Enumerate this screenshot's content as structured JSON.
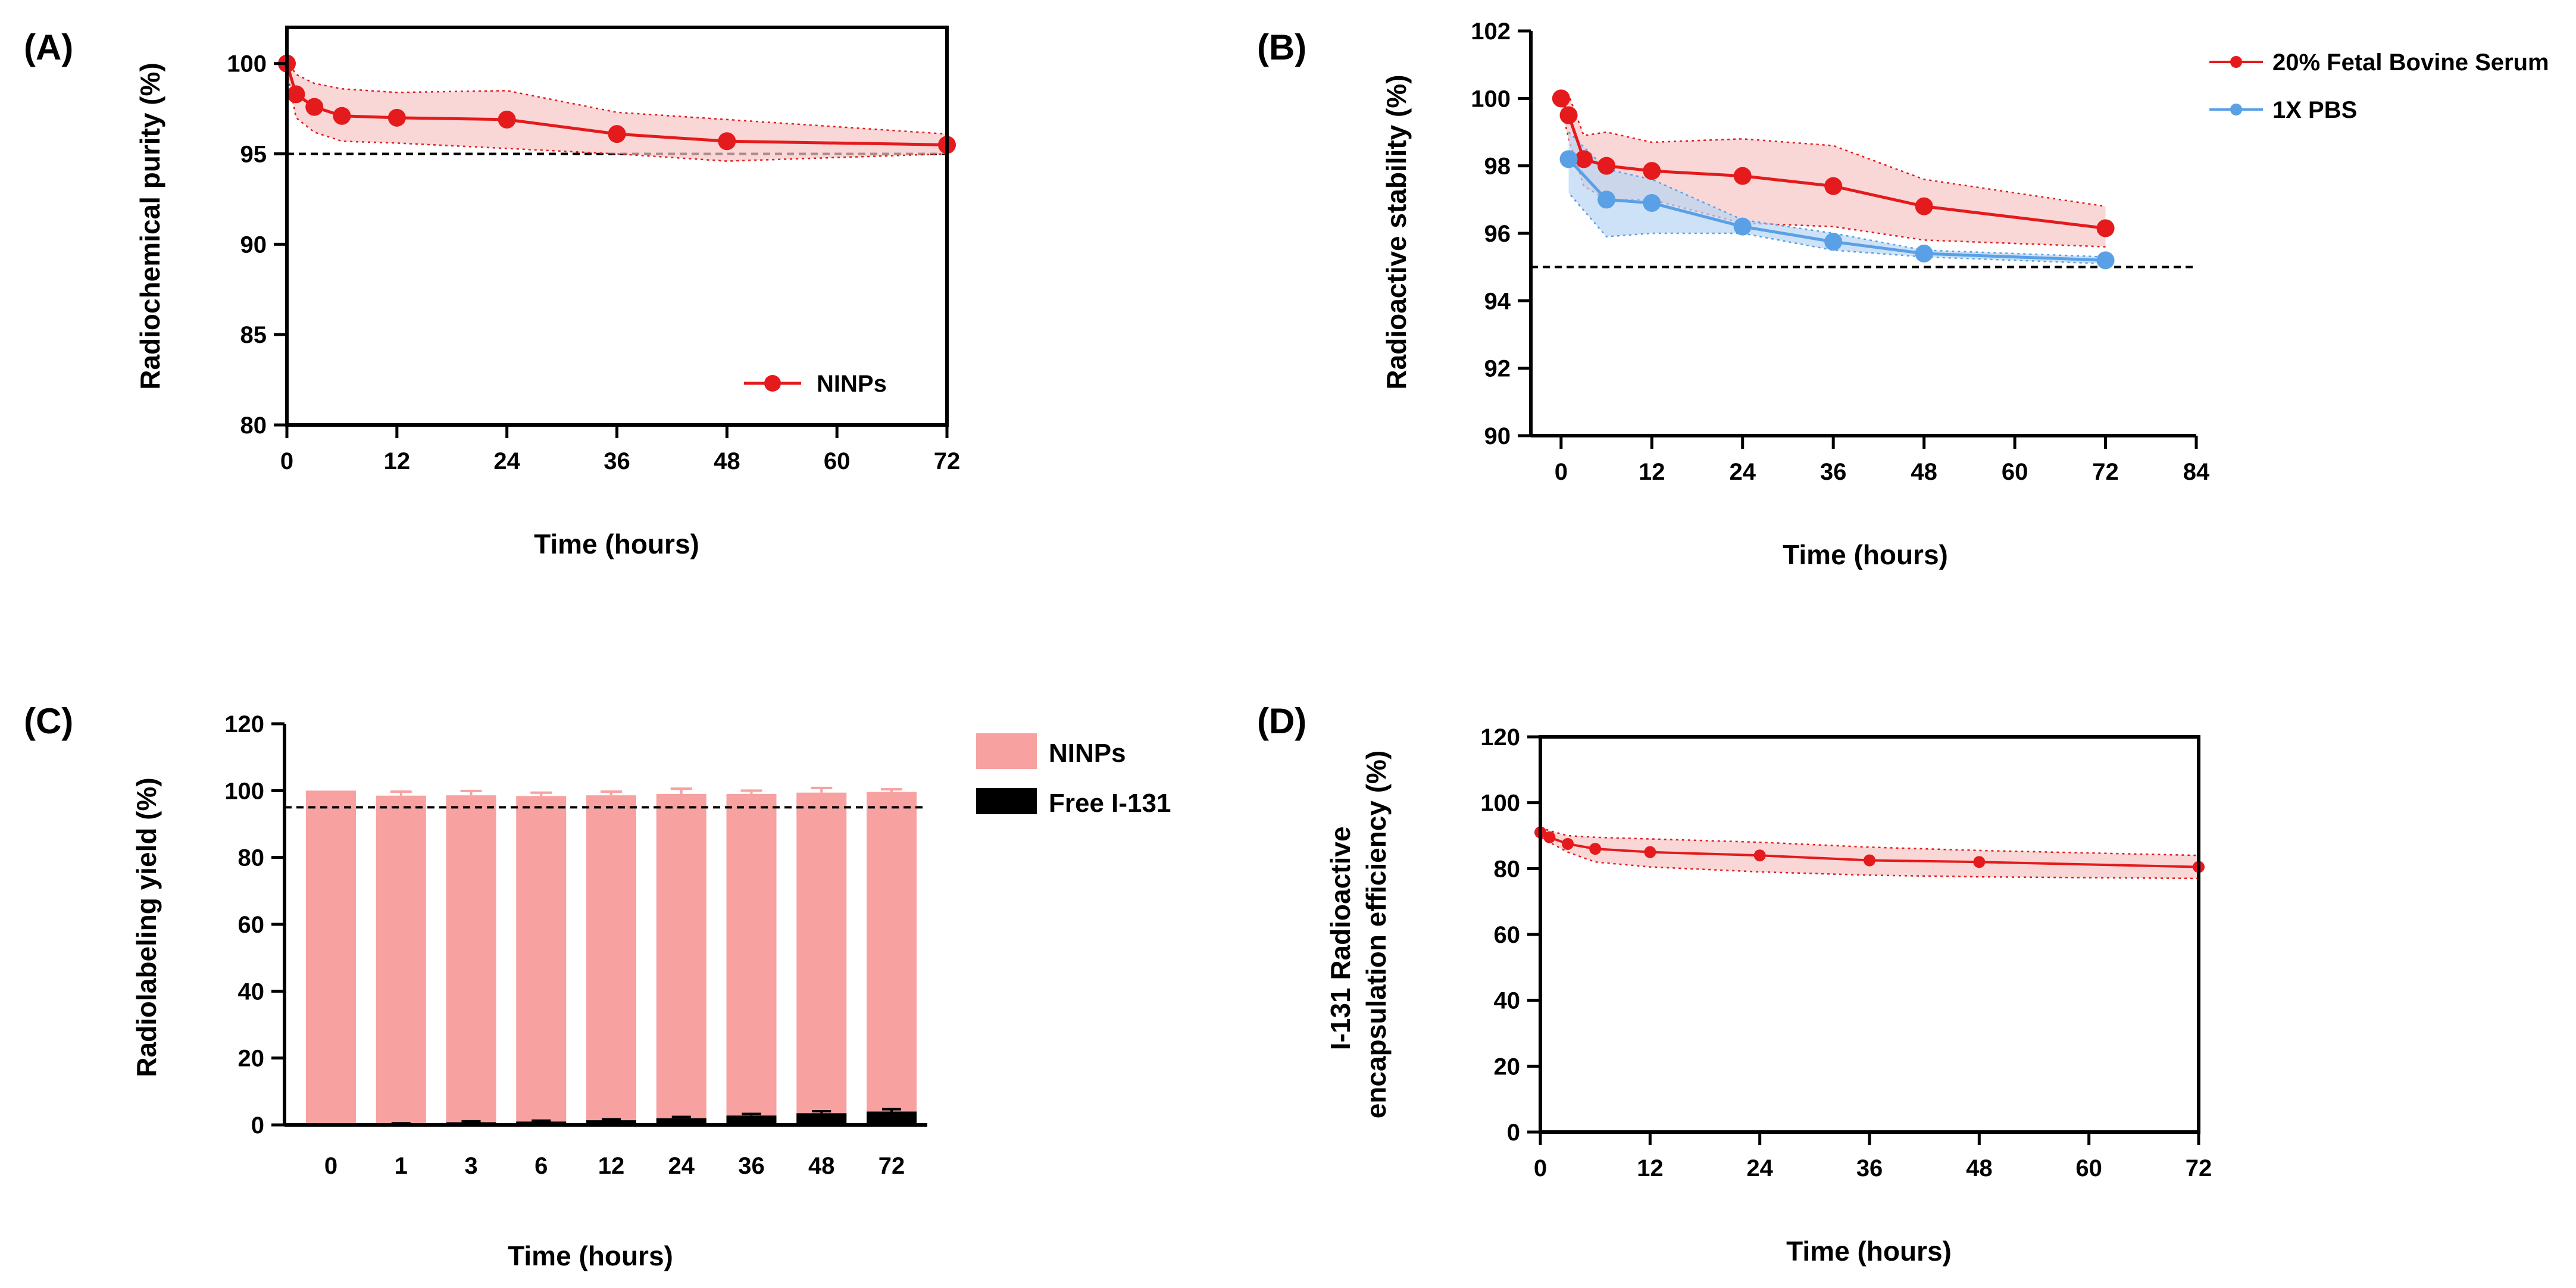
{
  "colors": {
    "red": "#e41a1c",
    "red_band": "#f7c6c6",
    "blue": "#5aa0e6",
    "blue_band": "#b9d6f3",
    "bar_pink": "#f7a1a1",
    "bar_black": "#000000",
    "threshold": "#000000"
  },
  "chart_data": [
    {
      "id": "A",
      "panel_label": "(A)",
      "type": "line",
      "xlabel": "Time (hours)",
      "ylabel": "Radiochemical purity (%)",
      "xlim": [
        0,
        72
      ],
      "ylim": [
        80,
        102
      ],
      "xticks": [
        0,
        12,
        24,
        36,
        48,
        60,
        72
      ],
      "yticks": [
        80,
        85,
        90,
        95,
        100
      ],
      "threshold": 95,
      "legend_position": "bottom-right",
      "series": [
        {
          "name": "NINPs",
          "color": "#e41a1c",
          "band_color": "#f7c6c6",
          "x": [
            0,
            1,
            3,
            6,
            12,
            24,
            36,
            48,
            72
          ],
          "y": [
            100.0,
            98.3,
            97.6,
            97.1,
            97.0,
            96.9,
            96.1,
            95.7,
            95.5
          ],
          "lower": [
            99.6,
            97.0,
            96.2,
            95.7,
            95.6,
            95.3,
            95.0,
            94.6,
            95.0
          ],
          "upper": [
            100.2,
            99.4,
            98.9,
            98.6,
            98.4,
            98.5,
            97.3,
            96.9,
            96.1
          ]
        }
      ]
    },
    {
      "id": "B",
      "panel_label": "(B)",
      "type": "line",
      "xlabel": "Time (hours)",
      "ylabel": "Radioactive stability (%)",
      "xlim": [
        -4,
        84
      ],
      "ylim": [
        90,
        102
      ],
      "xticks": [
        0,
        12,
        24,
        36,
        48,
        60,
        72,
        84
      ],
      "yticks": [
        90,
        92,
        94,
        96,
        98,
        100,
        102
      ],
      "threshold": 95,
      "legend_position": "outside-top-right",
      "series": [
        {
          "name": "20% Fetal Bovine Serum",
          "color": "#e41a1c",
          "band_color": "#f7c6c6",
          "x": [
            0,
            1,
            3,
            6,
            12,
            24,
            36,
            48,
            72
          ],
          "y": [
            100.0,
            99.5,
            98.2,
            98.0,
            97.85,
            97.7,
            97.4,
            96.8,
            96.15
          ],
          "lower": [
            99.8,
            98.8,
            97.4,
            97.0,
            97.0,
            96.3,
            96.2,
            95.8,
            95.6
          ],
          "upper": [
            100.2,
            100.1,
            98.9,
            99.0,
            98.7,
            98.8,
            98.6,
            97.6,
            96.8
          ]
        },
        {
          "name": "1X PBS",
          "color": "#5aa0e6",
          "band_color": "#b9d6f3",
          "x": [
            1,
            6,
            12,
            24,
            36,
            48,
            72
          ],
          "y": [
            98.2,
            97.0,
            96.9,
            96.2,
            95.75,
            95.4,
            95.2
          ],
          "lower": [
            97.2,
            95.9,
            96.0,
            96.0,
            95.5,
            95.3,
            95.1
          ],
          "upper": [
            99.0,
            97.9,
            97.6,
            96.4,
            96.0,
            95.5,
            95.3
          ]
        }
      ]
    },
    {
      "id": "C",
      "panel_label": "(C)",
      "type": "bar",
      "xlabel": "Time (hours)",
      "ylabel": "Radiolabeling yield (%)",
      "ylim": [
        0,
        120
      ],
      "yticks": [
        0,
        20,
        40,
        60,
        80,
        100,
        120
      ],
      "threshold": 95,
      "legend_position": "outside-top-right",
      "categories": [
        "0",
        "1",
        "3",
        "6",
        "12",
        "24",
        "36",
        "48",
        "72"
      ],
      "series": [
        {
          "name": "NINPs",
          "color": "#f7a1a1",
          "values": [
            100,
            98.5,
            98.6,
            98.4,
            98.6,
            99.0,
            99.0,
            99.4,
            99.6
          ],
          "errors": [
            0,
            1.2,
            1.3,
            1.0,
            1.1,
            1.6,
            1.0,
            1.4,
            0.8
          ]
        },
        {
          "name": "Free I-131",
          "color": "#000000",
          "values": [
            0.0,
            0.3,
            0.8,
            1.0,
            1.4,
            2.0,
            2.8,
            3.5,
            4.0
          ],
          "errors": [
            0,
            0.2,
            0.3,
            0.3,
            0.3,
            0.4,
            0.5,
            0.6,
            0.7
          ]
        }
      ]
    },
    {
      "id": "D",
      "panel_label": "(D)",
      "type": "line",
      "xlabel": "Time (hours)",
      "ylabel_lines": [
        "I-131 Radioactive",
        "encapsulation efficiency (%)"
      ],
      "xlim": [
        0,
        72
      ],
      "ylim": [
        0,
        120
      ],
      "xticks": [
        0,
        12,
        24,
        36,
        48,
        60,
        72
      ],
      "yticks": [
        0,
        20,
        40,
        60,
        80,
        100,
        120
      ],
      "series": [
        {
          "name": "I-131",
          "color": "#e41a1c",
          "band_color": "#f7c6c6",
          "x": [
            0,
            1,
            3,
            6,
            12,
            24,
            36,
            48,
            72
          ],
          "y": [
            91.0,
            89.5,
            87.5,
            86.0,
            85.0,
            84.0,
            82.5,
            82.0,
            80.5
          ],
          "lower": [
            89.5,
            88.0,
            85.0,
            82.0,
            80.5,
            79.0,
            78.0,
            77.5,
            77.0
          ],
          "upper": [
            92.5,
            91.5,
            90.0,
            89.5,
            89.0,
            88.0,
            86.5,
            85.5,
            84.0
          ]
        }
      ]
    }
  ]
}
